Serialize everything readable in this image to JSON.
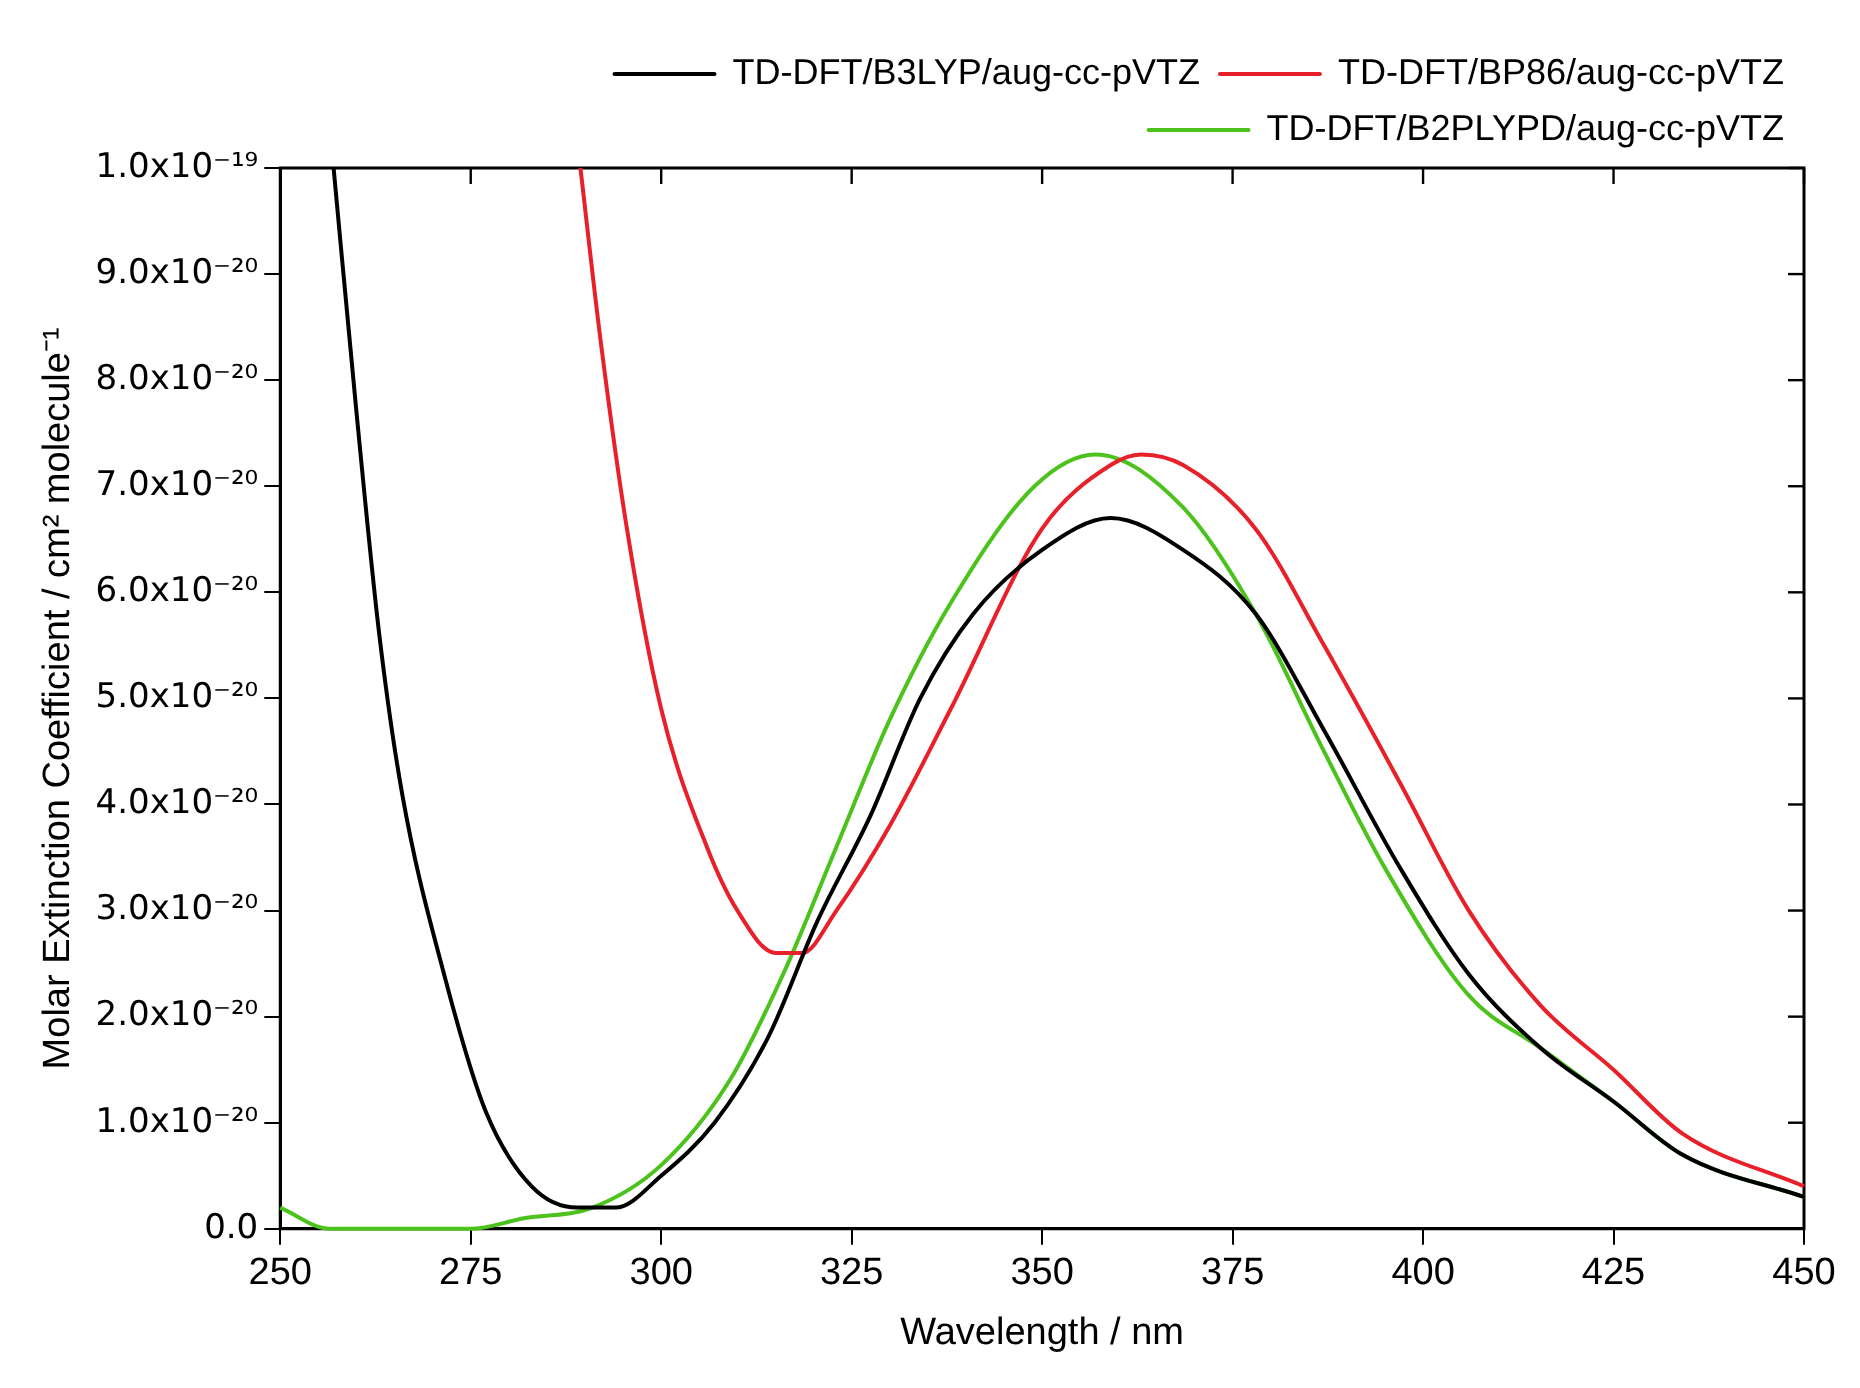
{
  "chart_data": {
    "type": "line",
    "xlabel": "Wavelength / nm",
    "ylabel": "Molar Extinction Coefficient / cm² molecule⁻¹",
    "xlim": [
      250,
      450
    ],
    "ylim": [
      0,
      1e-19
    ],
    "xticks": [
      250,
      275,
      300,
      325,
      350,
      375,
      400,
      425,
      450
    ],
    "yticks": [
      {
        "value": 0,
        "label": "0.0"
      },
      {
        "value": 1e-20,
        "label": "1.0x10⁻²⁰"
      },
      {
        "value": 2e-20,
        "label": "2.0x10⁻²⁰"
      },
      {
        "value": 3e-20,
        "label": "3.0x10⁻²⁰"
      },
      {
        "value": 4e-20,
        "label": "4.0x10⁻²⁰"
      },
      {
        "value": 5e-20,
        "label": "5.0x10⁻²⁰"
      },
      {
        "value": 6e-20,
        "label": "6.0x10⁻²⁰"
      },
      {
        "value": 7e-20,
        "label": "7.0x10⁻²⁰"
      },
      {
        "value": 8e-20,
        "label": "8.0x10⁻²⁰"
      },
      {
        "value": 9e-20,
        "label": "9.0x10⁻²⁰"
      },
      {
        "value": 1e-19,
        "label": "1.0x10⁻¹⁹"
      }
    ],
    "grid": false,
    "legend": "top right",
    "marker": "none",
    "line_style": "solid",
    "series": [
      {
        "name": "TD-DFT/B3LYP/aug-cc-pVTZ",
        "color": "#000000",
        "x": [
          257,
          260,
          263,
          266,
          271.5,
          277,
          283,
          289,
          294,
          300,
          307,
          314,
          320.5,
          327.5,
          334,
          341,
          350,
          359,
          368.5,
          378,
          387,
          397,
          406,
          415.5,
          425,
          434,
          450
        ],
        "values": [
          1e-19,
          7.7e-20,
          5.6e-20,
          4.1e-20,
          2.4e-20,
          1.1e-20,
          4e-21,
          2e-21,
          2e-21,
          5e-21,
          1e-20,
          1.8e-20,
          2.9e-20,
          3.9e-20,
          5e-20,
          5.8e-20,
          6.4e-20,
          6.7e-20,
          6.4e-20,
          5.8e-20,
          4.7e-20,
          3.4e-20,
          2.4e-20,
          1.7e-20,
          1.2e-20,
          7e-21,
          3e-21
        ]
      },
      {
        "name": "TD-DFT/BP86/aug-cc-pVTZ",
        "color": "#e8202a",
        "x": [
          289.4,
          292,
          295.5,
          300,
          306,
          310,
          315,
          318.5,
          323,
          330,
          338,
          350,
          359,
          363,
          368.5,
          378,
          387,
          397,
          406,
          415.5,
          425,
          434,
          450
        ],
        "values": [
          1e-19,
          8.4e-20,
          6.6e-20,
          4.9e-20,
          3.6e-20,
          3e-20,
          2.6e-20,
          2.6e-20,
          3e-20,
          3.8e-20,
          4.9e-20,
          6.6e-20,
          7.2e-20,
          7.3e-20,
          7.2e-20,
          6.6e-20,
          5.5e-20,
          4.2e-20,
          3e-20,
          2.1e-20,
          1.5e-20,
          9e-21,
          4e-21
        ]
      },
      {
        "name": "TD-DFT/B2PLYPD/aug-cc-pVTZ",
        "color": "#4cc21c",
        "x": [
          250,
          256.5,
          265,
          275,
          282,
          291,
          300,
          309,
          316,
          323,
          330,
          338,
          349,
          357,
          368.5,
          378,
          387,
          395,
          406,
          415.5,
          425,
          434,
          450
        ],
        "values": [
          2e-21,
          0,
          0,
          0,
          1e-21,
          2e-21,
          6e-21,
          1.4e-20,
          2.4e-20,
          3.6e-20,
          4.8e-20,
          5.9e-20,
          7e-20,
          7.3e-20,
          6.8e-20,
          5.8e-20,
          4.5e-20,
          3.4e-20,
          2.2e-20,
          1.7e-20,
          1.2e-20,
          7e-21,
          3e-21
        ]
      }
    ]
  }
}
